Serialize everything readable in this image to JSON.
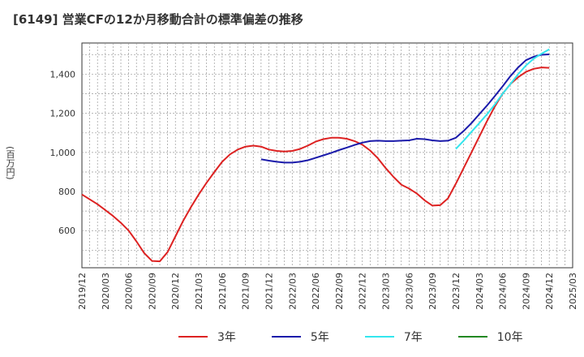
{
  "title": "[6149]  営業CFの12か月移動合計の標準偏差の推移",
  "chart_data": {
    "type": "line",
    "ylabel": "(百万円)",
    "xlabel": "",
    "ylim": [
      410,
      1560
    ],
    "yticks": [
      600,
      800,
      1000,
      1200,
      1400
    ],
    "ytick_labels": [
      "600",
      "800",
      "1,000",
      "1,200",
      "1,400"
    ],
    "xlim": [
      "2019-12",
      "2025-03"
    ],
    "xtick_labels": [
      "2019/12",
      "2020/03",
      "2020/06",
      "2020/09",
      "2020/12",
      "2021/03",
      "2021/06",
      "2021/09",
      "2021/12",
      "2022/03",
      "2022/06",
      "2022/09",
      "2022/12",
      "2023/03",
      "2023/06",
      "2023/09",
      "2023/12",
      "2024/03",
      "2024/06",
      "2024/09",
      "2024/12",
      "2025/03"
    ],
    "grid": true,
    "legend_position": "bottom",
    "series": [
      {
        "name": "3年",
        "color": "#dd2222",
        "x": [
          "2019-12",
          "2020-01",
          "2020-02",
          "2020-03",
          "2020-04",
          "2020-05",
          "2020-06",
          "2020-07",
          "2020-08",
          "2020-09",
          "2020-10",
          "2020-11",
          "2020-12",
          "2021-01",
          "2021-02",
          "2021-03",
          "2021-04",
          "2021-05",
          "2021-06",
          "2021-07",
          "2021-08",
          "2021-09",
          "2021-10",
          "2021-11",
          "2021-12",
          "2022-01",
          "2022-02",
          "2022-03",
          "2022-04",
          "2022-05",
          "2022-06",
          "2022-07",
          "2022-08",
          "2022-09",
          "2022-10",
          "2022-11",
          "2022-12",
          "2023-01",
          "2023-02",
          "2023-03",
          "2023-04",
          "2023-05",
          "2023-06",
          "2023-07",
          "2023-08",
          "2023-09",
          "2023-10",
          "2023-11",
          "2023-12",
          "2024-01",
          "2024-02",
          "2024-03",
          "2024-04",
          "2024-05",
          "2024-06",
          "2024-07",
          "2024-08",
          "2024-09",
          "2024-10",
          "2024-11",
          "2024-12"
        ],
        "values": [
          785,
          760,
          735,
          705,
          675,
          640,
          600,
          545,
          485,
          445,
          443,
          490,
          570,
          650,
          720,
          785,
          845,
          900,
          952,
          990,
          1015,
          1030,
          1035,
          1030,
          1015,
          1008,
          1005,
          1008,
          1018,
          1035,
          1055,
          1068,
          1075,
          1075,
          1070,
          1058,
          1040,
          1010,
          970,
          920,
          875,
          835,
          815,
          790,
          755,
          728,
          730,
          765,
          840,
          920,
          1000,
          1080,
          1160,
          1235,
          1300,
          1350,
          1385,
          1412,
          1428,
          1435,
          1433
        ],
        "line_width": 2
      },
      {
        "name": "5年",
        "color": "#1a1aaa",
        "x": [
          "2021-11",
          "2021-12",
          "2022-01",
          "2022-02",
          "2022-03",
          "2022-04",
          "2022-05",
          "2022-06",
          "2022-07",
          "2022-08",
          "2022-09",
          "2022-10",
          "2022-11",
          "2022-12",
          "2023-01",
          "2023-02",
          "2023-03",
          "2023-04",
          "2023-05",
          "2023-06",
          "2023-07",
          "2023-08",
          "2023-09",
          "2023-10",
          "2023-11",
          "2023-12",
          "2024-01",
          "2024-02",
          "2024-03",
          "2024-04",
          "2024-05",
          "2024-06",
          "2024-07",
          "2024-08",
          "2024-09",
          "2024-10",
          "2024-11",
          "2024-12"
        ],
        "values": [
          965,
          958,
          952,
          948,
          948,
          952,
          960,
          972,
          985,
          998,
          1012,
          1025,
          1038,
          1050,
          1058,
          1060,
          1058,
          1058,
          1060,
          1062,
          1070,
          1068,
          1062,
          1058,
          1060,
          1075,
          1110,
          1150,
          1195,
          1240,
          1288,
          1338,
          1390,
          1435,
          1472,
          1490,
          1500,
          1502
        ],
        "line_width": 2
      },
      {
        "name": "7年",
        "color": "#33e6ee",
        "x": [
          "2023-12",
          "2024-01",
          "2024-02",
          "2024-03",
          "2024-04",
          "2024-05",
          "2024-06",
          "2024-07",
          "2024-08",
          "2024-09",
          "2024-10",
          "2024-11",
          "2024-12"
        ],
        "values": [
          1018,
          1060,
          1105,
          1150,
          1195,
          1245,
          1300,
          1350,
          1400,
          1445,
          1480,
          1505,
          1528
        ],
        "line_width": 2
      },
      {
        "name": "10年",
        "color": "#228822",
        "x": [],
        "values": [],
        "line_width": 2
      }
    ]
  }
}
